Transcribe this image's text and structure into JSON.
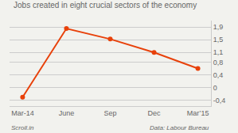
{
  "chart_data": {
    "type": "line",
    "title": "Jobs created in eight crucial sectors of the economy",
    "categories": [
      "Mar-14",
      "June",
      "Sep",
      "Dec",
      "Mar’15"
    ],
    "values": [
      -0.3,
      1.85,
      1.52,
      1.1,
      0.6
    ],
    "color": "#E8410A",
    "marker": "circle",
    "ylim": [
      -0.58,
      2.1
    ],
    "yticks": [
      {
        "value": -0.4,
        "label": "-0,4"
      },
      0,
      {
        "value": 0.4,
        "label": "0,4"
      },
      {
        "value": 0.8,
        "label": "0,8"
      },
      {
        "value": 1.1,
        "label": "1,1"
      },
      {
        "value": 1.5,
        "label": "1,5"
      },
      {
        "value": 1.9,
        "label": "1,9"
      }
    ],
    "grid": true,
    "annotations": [
      "Scroll.in",
      "Data: Labour Bureau"
    ]
  }
}
